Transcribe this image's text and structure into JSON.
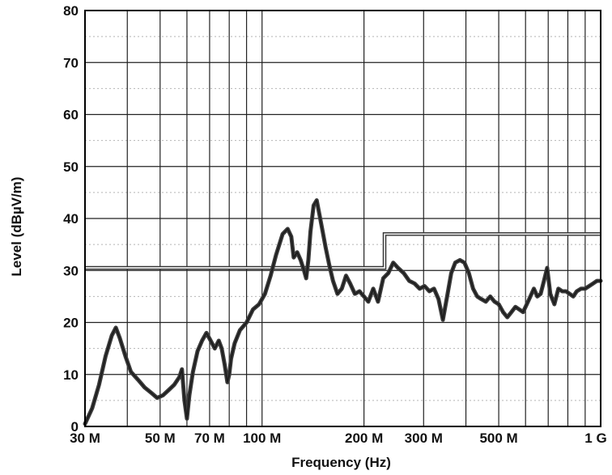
{
  "chart_data": {
    "type": "line",
    "xlabel": "Frequency (Hz)",
    "ylabel": "Level (dBµV/m)",
    "x_scale": "log",
    "xlim": [
      30000000,
      1000000000
    ],
    "ylim": [
      0,
      80
    ],
    "grid": true,
    "y_ticks": [
      {
        "value": 0,
        "label": "0"
      },
      {
        "value": 10,
        "label": "10"
      },
      {
        "value": 20,
        "label": "20"
      },
      {
        "value": 30,
        "label": "30"
      },
      {
        "value": 40,
        "label": "40"
      },
      {
        "value": 50,
        "label": "50"
      },
      {
        "value": 60,
        "label": "60"
      },
      {
        "value": 70,
        "label": "70"
      },
      {
        "value": 80,
        "label": "80"
      }
    ],
    "x_ticks": [
      {
        "value": 30000000,
        "label": "30 M"
      },
      {
        "value": 50000000,
        "label": "50 M"
      },
      {
        "value": 70000000,
        "label": "70 M"
      },
      {
        "value": 100000000,
        "label": "100 M"
      },
      {
        "value": 200000000,
        "label": "200 M"
      },
      {
        "value": 300000000,
        "label": "300 M"
      },
      {
        "value": 500000000,
        "label": "500 M"
      },
      {
        "value": 1000000000,
        "label": "1 G"
      }
    ],
    "x_minor_grid": [
      40000000,
      60000000,
      80000000,
      90000000,
      400000000,
      600000000,
      700000000,
      800000000,
      900000000
    ],
    "limit_line": {
      "x": [
        30000000,
        230000000,
        230000000,
        1000000000
      ],
      "y": [
        30.5,
        30.5,
        37,
        37
      ]
    },
    "series": [
      {
        "x": [
          30000000,
          31500000,
          33000000,
          34500000,
          36000000,
          37000000,
          38000000,
          39500000,
          41000000,
          43000000,
          45000000,
          47000000,
          49000000,
          51000000,
          53000000,
          55000000,
          57000000,
          58000000,
          59000000,
          60000000,
          61000000,
          62500000,
          64500000,
          66500000,
          68500000,
          70500000,
          72500000,
          74500000,
          76000000,
          77500000,
          79000000,
          80000000,
          81000000,
          83000000,
          86000000,
          90000000,
          94000000,
          98000000,
          102000000,
          106000000,
          110000000,
          115000000,
          119000000,
          122000000,
          124000000,
          127000000,
          130000000,
          133000000,
          135000000,
          137000000,
          139000000,
          142000000,
          145000000,
          148000000,
          151000000,
          154000000,
          158000000,
          162000000,
          167000000,
          172000000,
          177000000,
          182000000,
          188000000,
          194000000,
          200000000,
          206000000,
          213000000,
          220000000,
          228000000,
          236000000,
          244000000,
          252000000,
          262000000,
          272000000,
          282000000,
          292000000,
          302000000,
          312000000,
          322000000,
          332000000,
          342000000,
          352000000,
          362000000,
          372000000,
          384000000,
          396000000,
          408000000,
          420000000,
          432000000,
          444000000,
          458000000,
          472000000,
          486000000,
          500000000,
          515000000,
          530000000,
          545000000,
          560000000,
          575000000,
          590000000,
          605000000,
          620000000,
          635000000,
          650000000,
          665000000,
          680000000,
          695000000,
          710000000,
          730000000,
          750000000,
          770000000,
          790000000,
          810000000,
          830000000,
          850000000,
          875000000,
          900000000,
          925000000,
          950000000,
          975000000,
          1000000000
        ],
        "values": [
          0.5,
          3.5,
          8,
          13.5,
          17.5,
          19,
          17,
          13.5,
          10.5,
          9,
          7.5,
          6.5,
          5.5,
          6,
          7,
          8,
          9.5,
          11,
          5,
          1.5,
          6,
          10.5,
          14.5,
          16.5,
          18,
          16.5,
          15,
          16.5,
          15,
          12,
          8.5,
          10,
          13,
          16,
          18.5,
          20,
          22.5,
          23.5,
          25.5,
          29,
          33,
          37,
          38,
          36.5,
          32.5,
          33.5,
          32,
          30,
          28.5,
          32,
          37.5,
          42.5,
          43.5,
          40.5,
          37.5,
          34.5,
          31,
          28,
          25.5,
          26.5,
          29,
          27.5,
          25.5,
          26,
          25,
          24,
          26.5,
          24,
          28.5,
          29.5,
          31.5,
          30.5,
          29.5,
          28,
          27.5,
          26.5,
          27,
          26,
          26.5,
          24.5,
          20.5,
          25,
          29.5,
          31.5,
          32,
          31.5,
          29.5,
          26.5,
          25,
          24.5,
          24,
          25,
          24,
          23.5,
          22,
          21,
          22,
          23,
          22.5,
          22,
          23.5,
          25,
          26.5,
          25,
          25.5,
          28,
          30.5,
          25.5,
          23.5,
          26.5,
          26,
          26,
          25.5,
          25,
          26,
          26.5,
          26.5,
          27,
          27.5,
          28,
          28
        ]
      }
    ]
  }
}
